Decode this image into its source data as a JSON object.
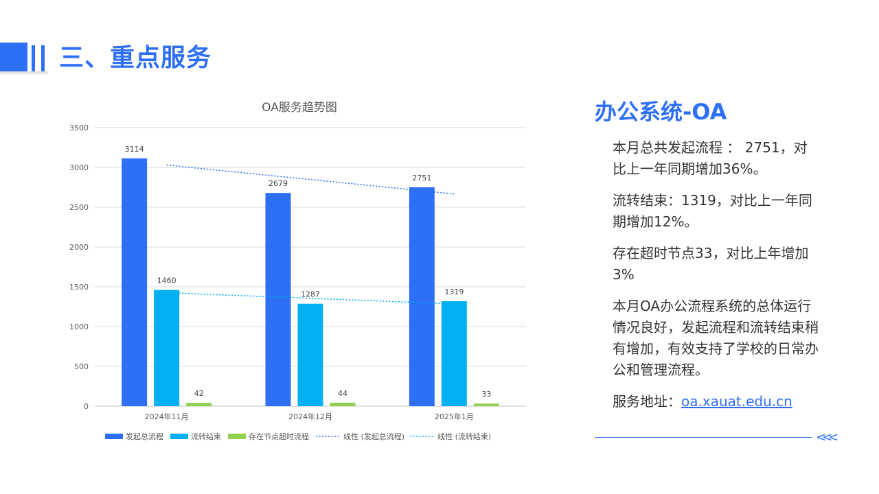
{
  "header": {
    "title": "三、重点服务"
  },
  "colors": {
    "accent": "#2d6ff5",
    "series_initiated": "#2d6ff5",
    "series_completed": "#00b0f0",
    "series_overtime": "#92d050"
  },
  "chart_data": {
    "type": "bar",
    "title": "OA服务趋势图",
    "categories": [
      "2024年11月",
      "2024年12月",
      "2025年1月"
    ],
    "series": [
      {
        "name": "发起总流程",
        "values": [
          3114,
          2679,
          2751
        ],
        "color": "#2d6ff5"
      },
      {
        "name": "流转结束",
        "values": [
          1460,
          1287,
          1319
        ],
        "color": "#00b0f0"
      },
      {
        "name": "存在节点超时流程",
        "values": [
          42,
          44,
          33
        ],
        "color": "#92d050"
      }
    ],
    "trendlines": [
      {
        "name": "线性 (发起总流程)",
        "series_index": 0,
        "color": "#2d6ff5"
      },
      {
        "name": "线性 (流转结束)",
        "series_index": 1,
        "color": "#00b0f0"
      }
    ],
    "ylim": [
      0,
      3500
    ],
    "yticks": [
      0,
      500,
      1000,
      1500,
      2000,
      2500,
      3000,
      3500
    ],
    "grid": true,
    "data_labels": true,
    "legend": "bottom"
  },
  "panel": {
    "title": "办公系统-OA",
    "paragraphs": [
      "本月总共发起流程 ： 2751，对比上一年同期增加36%。",
      "流转结束：1319，对比上一年同期增加12%。",
      "存在超时节点33，对比上年增加3%",
      "本月OA办公流程系统的总体运行情况良好，发起流程和流转结束稍有增加，有效支持了学校的日常办公和管理流程。"
    ],
    "address_label": "服务地址：",
    "address_link": "oa.xauat.edu.cn",
    "chevrons": "<<<"
  }
}
